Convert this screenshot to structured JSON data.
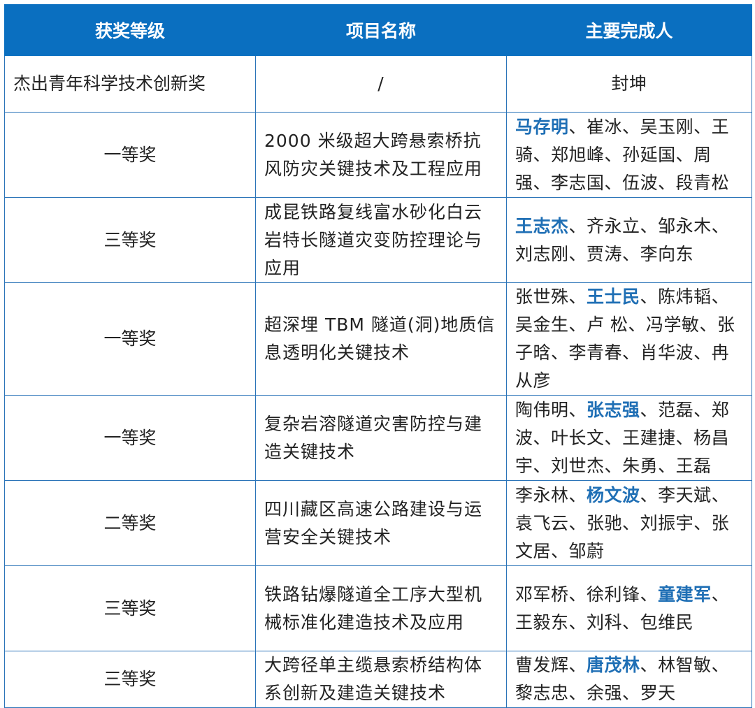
{
  "colors": {
    "header_bg": "#0a6fc0",
    "border": "#2b74b8",
    "highlight": "#1f6fb5"
  },
  "headers": [
    "获奖等级",
    "项目名称",
    "主要完成人"
  ],
  "rows": [
    {
      "level": "杰出青年科学技术创新奖",
      "project": "/",
      "people": [
        "封坤"
      ],
      "highlight": -1
    },
    {
      "level": "一等奖",
      "project": "2000 米级超大跨悬索桥抗风防灾关键技术及工程应用",
      "people": [
        "马存明",
        "崔冰",
        "吴玉刚",
        "王骑",
        "郑旭峰",
        "孙延国",
        "周强",
        "李志国",
        "伍波",
        "段青松"
      ],
      "highlight": 0
    },
    {
      "level": "三等奖",
      "project": "成昆铁路复线富水砂化白云岩特长隧道灾变防控理论与应用",
      "people": [
        "王志杰",
        "齐永立",
        "邹永木",
        "刘志刚",
        "贾涛",
        "李向东"
      ],
      "highlight": 0
    },
    {
      "level": "一等奖",
      "project": "超深埋 TBM 隧道(洞)地质信息透明化关键技术",
      "people": [
        "张世殊",
        "王士民",
        "陈炜韬",
        "吴金生",
        "卢 松",
        "冯学敏",
        "张子晗",
        "李青春",
        "肖华波",
        "冉从彦"
      ],
      "highlight": 1
    },
    {
      "level": "一等奖",
      "project": "复杂岩溶隧道灾害防控与建造关键技术",
      "people": [
        "陶伟明",
        "张志强",
        "范磊",
        "郑波",
        "叶长文",
        "王建捷",
        "杨昌宇",
        "刘世杰",
        "朱勇",
        "王磊"
      ],
      "highlight": 1
    },
    {
      "level": "二等奖",
      "project": "四川藏区高速公路建设与运营安全关键技术",
      "people": [
        "李永林",
        "杨文波",
        "李天斌",
        "袁飞云",
        "张驰",
        "刘振宇",
        "张文居",
        "邹蔚"
      ],
      "highlight": 1
    },
    {
      "level": "三等奖",
      "project": "铁路钻爆隧道全工序大型机械标准化建造技术及应用",
      "people": [
        "邓军桥",
        "徐利锋",
        "童建军",
        "王毅东",
        "刘科",
        "包维民"
      ],
      "highlight": 2
    },
    {
      "level": "三等奖",
      "project": "大跨径单主缆悬索桥结构体系创新及建造关键技术",
      "people": [
        "曹发辉",
        "唐茂林",
        "林智敏",
        "黎志忠",
        "余强",
        "罗天"
      ],
      "highlight": 1
    }
  ]
}
